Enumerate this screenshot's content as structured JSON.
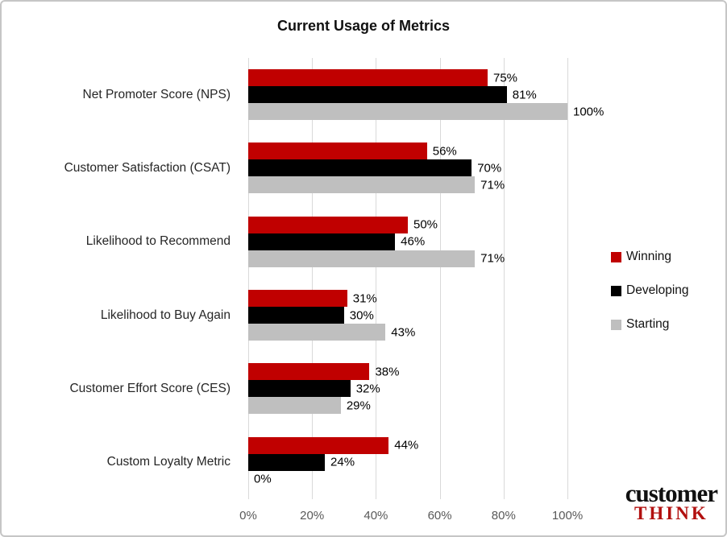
{
  "title": "Current Usage of Metrics",
  "chart_data": {
    "type": "bar",
    "orientation": "horizontal",
    "title": "Current Usage of Metrics",
    "categories": [
      "Net Promoter Score (NPS)",
      "Customer Satisfaction (CSAT)",
      "Likelihood to Recommend",
      "Likelihood to Buy Again",
      "Customer Effort Score (CES)",
      "Custom Loyalty Metric"
    ],
    "series": [
      {
        "name": "Winning",
        "color": "#c00000",
        "values": [
          75,
          56,
          50,
          31,
          38,
          44
        ]
      },
      {
        "name": "Developing",
        "color": "#000000",
        "values": [
          81,
          70,
          46,
          30,
          32,
          24
        ]
      },
      {
        "name": "Starting",
        "color": "#bfbfbf",
        "values": [
          100,
          71,
          71,
          43,
          29,
          0
        ]
      }
    ],
    "x_ticks": [
      "0%",
      "20%",
      "40%",
      "60%",
      "80%",
      "100%"
    ],
    "xlim": [
      0,
      100
    ],
    "grid": true,
    "gridline_color": "#d9d9d9",
    "axis_label_color": "#595959",
    "legend_position": "right",
    "data_label_format": "{v}%"
  },
  "legend": {
    "items": [
      {
        "label": "Winning",
        "color": "#c00000"
      },
      {
        "label": "Developing",
        "color": "#000000"
      },
      {
        "label": "Starting",
        "color": "#bfbfbf"
      }
    ]
  },
  "logo": {
    "line1": "customer",
    "line2": "THINK"
  }
}
